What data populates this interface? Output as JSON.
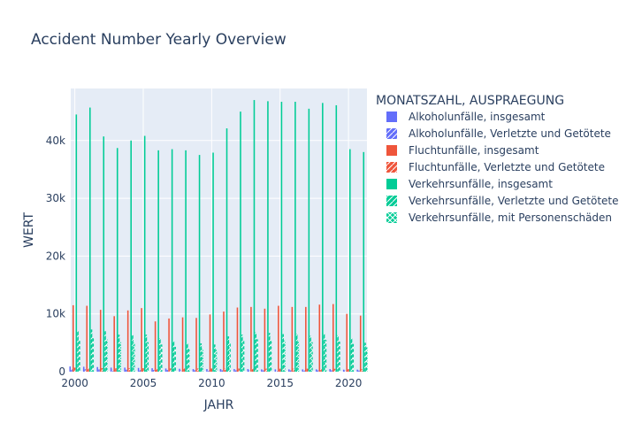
{
  "chart_data": {
    "type": "bar",
    "title": "Accident Number Yearly Overview",
    "xlabel": "JAHR",
    "ylabel": "WERT",
    "x_range": [
      1999.7,
      2021.35
    ],
    "ylim": [
      0,
      49000
    ],
    "xticks": [
      2000,
      2005,
      2010,
      2015,
      2020
    ],
    "xtick_labels": [
      "2000",
      "2005",
      "2010",
      "2015",
      "2020"
    ],
    "yticks": [
      0,
      10000,
      20000,
      30000,
      40000
    ],
    "ytick_labels": [
      "0",
      "10k",
      "20k",
      "30k",
      "40k"
    ],
    "grid": true,
    "plot_background": "#e5ecf6",
    "legend": {
      "title": "MONATSZAHL, AUSPRAEGUNG",
      "placement": "right"
    },
    "x": [
      2000,
      2001,
      2002,
      2003,
      2004,
      2005,
      2006,
      2007,
      2008,
      2009,
      2010,
      2011,
      2012,
      2013,
      2014,
      2015,
      2016,
      2017,
      2018,
      2019,
      2020,
      2021
    ],
    "series": [
      {
        "name": "Alkoholunfälle, insgesamt",
        "color": "#636efa",
        "pattern": "none",
        "values": [
          900,
          850,
          800,
          700,
          700,
          650,
          600,
          550,
          500,
          450,
          450,
          450,
          450,
          450,
          400,
          400,
          400,
          400,
          400,
          450,
          350,
          350
        ]
      },
      {
        "name": "Alkoholunfälle, Verletzte und Getötete",
        "color": "#636efa",
        "pattern": "diagonal",
        "values": [
          450,
          420,
          400,
          350,
          350,
          320,
          300,
          280,
          260,
          240,
          240,
          230,
          230,
          230,
          220,
          220,
          220,
          220,
          220,
          230,
          200,
          200
        ]
      },
      {
        "name": "Fluchtunfälle, insgesamt",
        "color": "#ef553b",
        "pattern": "none",
        "values": [
          11500,
          11400,
          10700,
          9600,
          10600,
          11000,
          8700,
          9200,
          9400,
          9300,
          9900,
          10400,
          11100,
          11200,
          10900,
          11400,
          11200,
          11200,
          11600,
          11700,
          10000,
          9700
        ]
      },
      {
        "name": "Fluchtunfälle, Verletzte und Getötete",
        "color": "#ef553b",
        "pattern": "diagonal",
        "values": [
          700,
          650,
          620,
          600,
          620,
          600,
          580,
          560,
          560,
          550,
          550,
          550,
          540,
          530,
          520,
          520,
          520,
          520,
          510,
          500,
          450,
          450
        ]
      },
      {
        "name": "Verkehrsunfälle, insgesamt",
        "color": "#00cc96",
        "pattern": "none",
        "values": [
          44500,
          45700,
          40700,
          38700,
          40000,
          40800,
          38300,
          38500,
          38300,
          37500,
          37900,
          42100,
          45000,
          47000,
          46800,
          46700,
          46700,
          45500,
          46500,
          46100,
          38500,
          38000
        ]
      },
      {
        "name": "Verkehrsunfälle, Verletzte und Getötete",
        "color": "#00cc96",
        "pattern": "diagonal",
        "values": [
          7000,
          7300,
          7000,
          6400,
          6300,
          6400,
          5800,
          5300,
          4900,
          4900,
          4700,
          6100,
          6400,
          6800,
          6700,
          6500,
          6500,
          6200,
          6600,
          6300,
          5800,
          5000
        ]
      },
      {
        "name": "Verkehrsunfälle, mit Personenschäden",
        "color": "#00cc96",
        "pattern": "crosshatch",
        "values": [
          5600,
          5900,
          5600,
          5100,
          5000,
          5100,
          4700,
          4300,
          4000,
          4000,
          3900,
          5000,
          5300,
          5600,
          5500,
          5400,
          5400,
          5100,
          5500,
          5200,
          4800,
          4200
        ]
      }
    ]
  }
}
